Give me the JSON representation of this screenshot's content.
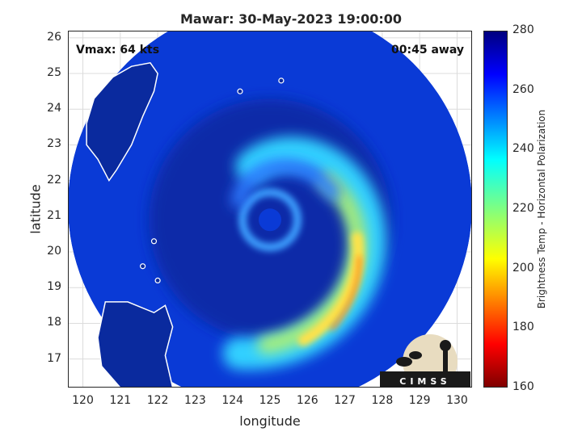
{
  "chart_data": {
    "type": "heatmap",
    "title": "Mawar: 30-May-2023 19:00:00",
    "annotations": {
      "vmax": "Vmax: 64 kts",
      "time_away": "00:45 away"
    },
    "xlabel": "longitude",
    "ylabel": "latitude",
    "xlim": [
      119.6,
      130.4
    ],
    "ylim": [
      16.2,
      26.2
    ],
    "xticks": [
      120,
      121,
      122,
      123,
      124,
      125,
      126,
      127,
      128,
      129,
      130
    ],
    "yticks": [
      17,
      18,
      19,
      20,
      21,
      22,
      23,
      24,
      25,
      26
    ],
    "grid": true,
    "colorbar": {
      "label": "Brightness Temp - Horizontal Polarization",
      "range": [
        160,
        280
      ],
      "ticks": [
        160,
        180,
        200,
        220,
        240,
        260,
        280
      ],
      "colormap": "jet"
    },
    "storm_center": {
      "lon": 125.0,
      "lat": 20.9
    },
    "swath_edge": {
      "description": "circular swath",
      "center_lon": 125.0,
      "center_lat": 21.3,
      "radius_deg": 5.4
    },
    "logo_text": "CIMSS"
  },
  "colors": {
    "background_blue": "#0a3ad6",
    "deep_blue": "#072aa8",
    "cyan": "#33d0ff",
    "yellow": "#ffe24a",
    "orange": "#ff8a1e"
  }
}
